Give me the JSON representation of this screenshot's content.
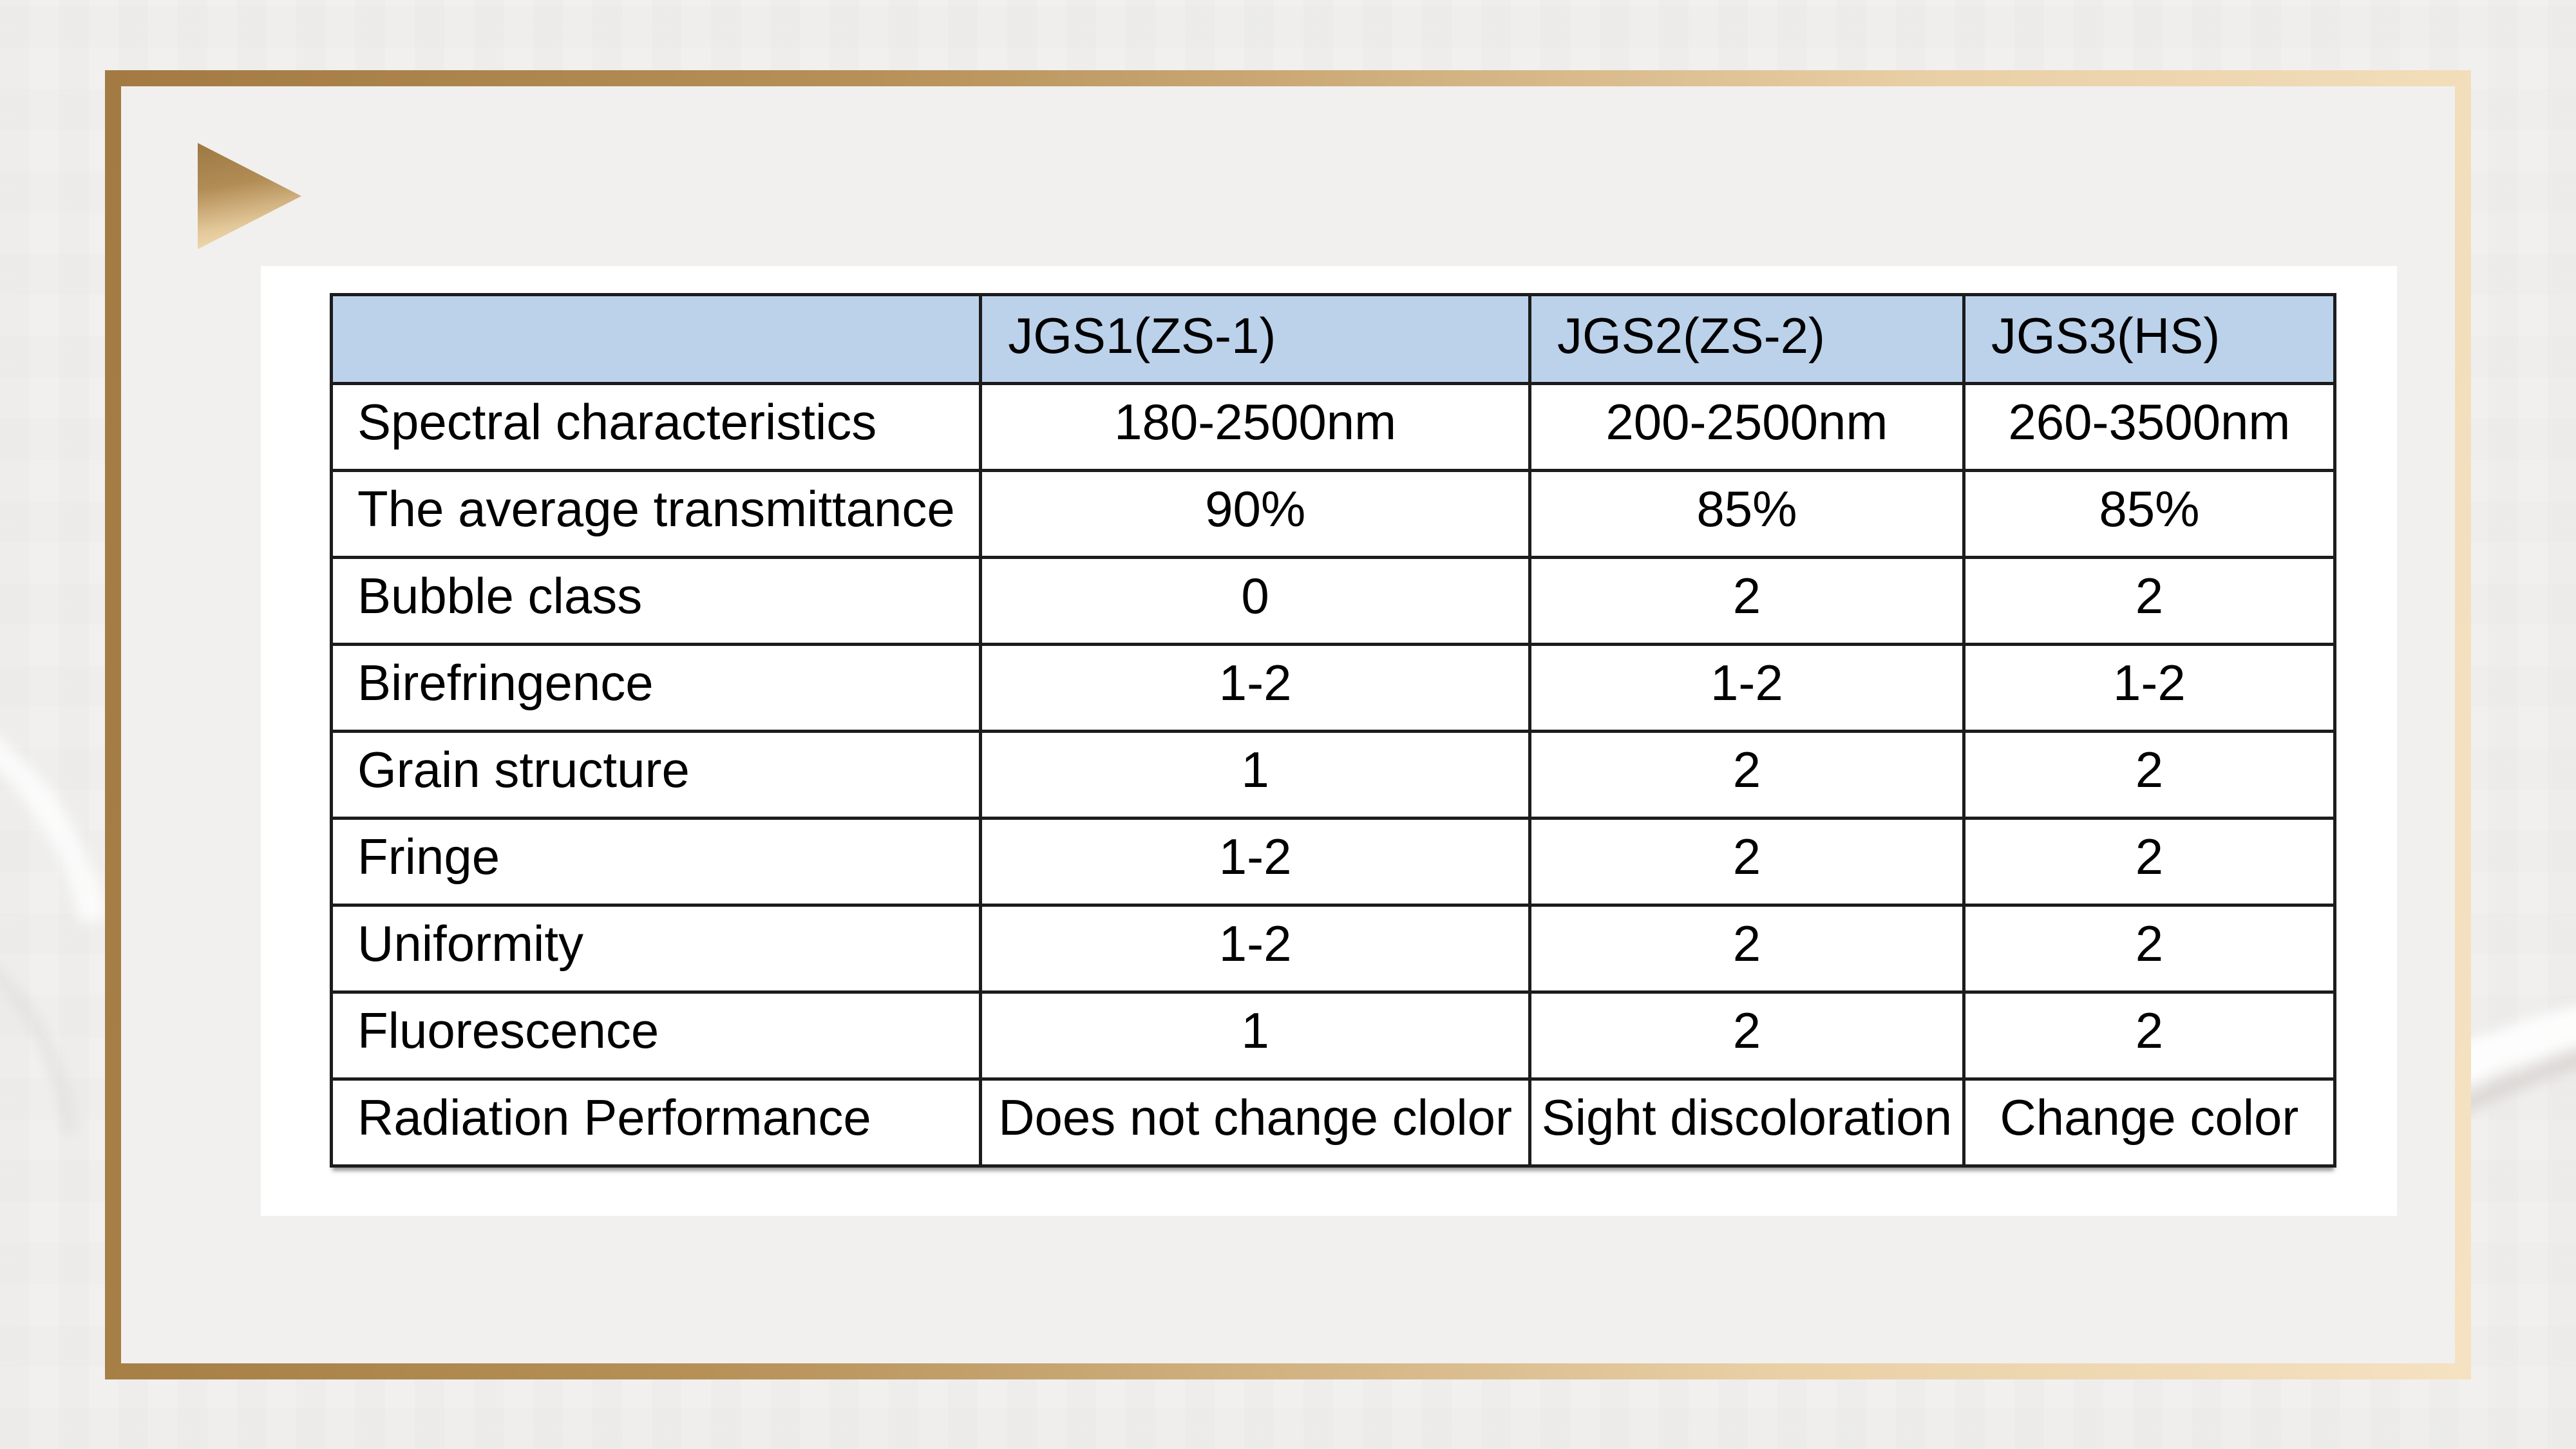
{
  "slide": {
    "type": "presentation-slide",
    "bullet_icon": "gold-right-triangle",
    "decor": "faint-white-swoosh-curves"
  },
  "theme": {
    "background": "#f1f0ef",
    "gold_dark": "#a27a42",
    "gold_light": "#f5e2c2",
    "header_blue": "#bcd2eb",
    "line_black": "#1c1c1c",
    "panel_white": "#ffffff"
  },
  "table": {
    "header": {
      "columns": [
        "",
        "JGS1(ZS-1)",
        "JGS2(ZS-2)",
        "JGS3(HS)"
      ]
    },
    "rows": [
      {
        "label": "Spectral characteristics",
        "values": [
          "180-2500nm",
          "200-2500nm",
          "260-3500nm"
        ]
      },
      {
        "label": "The average transmittance",
        "values": [
          "90%",
          "85%",
          "85%"
        ]
      },
      {
        "label": "Bubble class",
        "values": [
          "0",
          "2",
          "2"
        ]
      },
      {
        "label": "Birefringence",
        "values": [
          "1-2",
          "1-2",
          "1-2"
        ]
      },
      {
        "label": "Grain structure",
        "values": [
          "1",
          "2",
          "2"
        ]
      },
      {
        "label": "Fringe",
        "values": [
          "1-2",
          "2",
          "2"
        ]
      },
      {
        "label": "Uniformity",
        "values": [
          "1-2",
          "2",
          "2"
        ]
      },
      {
        "label": "Fluorescence",
        "values": [
          "1",
          "2",
          "2"
        ]
      },
      {
        "label": "Radiation Performance",
        "values": [
          "Does not change clolor",
          "Sight discoloration",
          "Change color"
        ]
      }
    ]
  }
}
